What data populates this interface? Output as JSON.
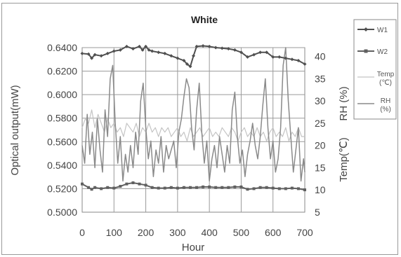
{
  "chart_data": {
    "type": "line",
    "title": "White",
    "xlabel": "Hour",
    "ylabel_left": "Optical output(mW)",
    "ylabel_right_rh": "RH (%)",
    "ylabel_right_temp": "Temp(℃)",
    "xlim": [
      0,
      700
    ],
    "ylim_left": [
      0.5,
      0.64
    ],
    "ylim_right": [
      5,
      42
    ],
    "grid": true,
    "legend_position": "right",
    "x_ticks": [
      "0",
      "100",
      "200",
      "300",
      "400",
      "500",
      "600",
      "700"
    ],
    "y_left_ticks": [
      "0.5000",
      "0.5200",
      "0.5400",
      "0.5600",
      "0.5800",
      "0.6000",
      "0.6200",
      "0.6400"
    ],
    "y_right_ticks": [
      "5",
      "10",
      "15",
      "20",
      "25",
      "30",
      "35",
      "40"
    ],
    "legend": [
      {
        "label": "W1",
        "color": "#555555",
        "marker": "diamond"
      },
      {
        "label": "W2",
        "color": "#555555",
        "marker": "square"
      },
      {
        "label": "Temp (℃)",
        "color": "#c4c4c4",
        "marker": "none"
      },
      {
        "label": "RH (%)",
        "color": "#8a8a8a",
        "marker": "none"
      }
    ],
    "series": [
      {
        "name": "W1",
        "axis": "left",
        "x": [
          0,
          20,
          30,
          40,
          60,
          80,
          100,
          120,
          140,
          160,
          180,
          190,
          200,
          210,
          220,
          240,
          260,
          280,
          300,
          320,
          330,
          340,
          350,
          360,
          380,
          400,
          420,
          440,
          460,
          480,
          500,
          520,
          540,
          560,
          580,
          600,
          620,
          640,
          660,
          680,
          700
        ],
        "y": [
          0.635,
          0.6345,
          0.631,
          0.634,
          0.633,
          0.635,
          0.637,
          0.638,
          0.641,
          0.639,
          0.641,
          0.638,
          0.641,
          0.638,
          0.637,
          0.636,
          0.635,
          0.633,
          0.631,
          0.629,
          0.626,
          0.624,
          0.633,
          0.641,
          0.6415,
          0.641,
          0.64,
          0.6395,
          0.639,
          0.638,
          0.636,
          0.632,
          0.634,
          0.636,
          0.636,
          0.632,
          0.632,
          0.631,
          0.63,
          0.629,
          0.626
        ]
      },
      {
        "name": "W2",
        "axis": "left",
        "x": [
          0,
          20,
          30,
          40,
          60,
          80,
          100,
          120,
          140,
          160,
          180,
          200,
          220,
          240,
          260,
          280,
          300,
          320,
          340,
          360,
          380,
          400,
          420,
          440,
          460,
          480,
          500,
          520,
          540,
          560,
          580,
          600,
          620,
          640,
          660,
          680,
          700
        ],
        "y": [
          0.524,
          0.521,
          0.5195,
          0.521,
          0.52,
          0.521,
          0.5205,
          0.522,
          0.524,
          0.525,
          0.524,
          0.523,
          0.521,
          0.5205,
          0.5205,
          0.521,
          0.5205,
          0.521,
          0.521,
          0.521,
          0.5215,
          0.5215,
          0.521,
          0.521,
          0.521,
          0.5215,
          0.5215,
          0.5195,
          0.52,
          0.521,
          0.521,
          0.5205,
          0.52,
          0.52,
          0.5205,
          0.52,
          0.519
        ]
      },
      {
        "name": "Temp (℃)",
        "axis": "right",
        "x": [
          0,
          10,
          20,
          30,
          40,
          50,
          60,
          70,
          80,
          90,
          100,
          110,
          120,
          130,
          140,
          150,
          160,
          170,
          180,
          190,
          200,
          210,
          220,
          230,
          240,
          250,
          260,
          270,
          280,
          290,
          300,
          310,
          320,
          330,
          340,
          350,
          360,
          370,
          380,
          390,
          400,
          410,
          420,
          430,
          440,
          450,
          460,
          470,
          480,
          490,
          500,
          510,
          520,
          530,
          540,
          550,
          560,
          570,
          580,
          590,
          600,
          610,
          620,
          630,
          640,
          650,
          660,
          670,
          680,
          690,
          700
        ],
        "y": [
          24,
          26,
          25,
          28,
          24,
          27,
          25,
          23,
          26,
          24,
          25,
          23,
          24,
          22,
          25,
          24,
          23,
          25,
          22,
          24,
          23,
          25,
          23,
          24,
          22,
          24,
          23,
          24,
          22,
          23,
          24,
          22,
          23,
          21,
          24,
          22,
          23,
          24,
          22,
          23,
          24,
          22,
          23,
          22,
          24,
          23,
          22,
          24,
          23,
          21,
          23,
          24,
          22,
          23,
          22,
          24,
          22,
          23,
          21,
          23,
          24,
          22,
          23,
          22,
          24,
          21,
          23,
          22,
          24,
          22,
          22
        ]
      },
      {
        "name": "RH (%)",
        "axis": "right",
        "x": [
          0,
          8,
          16,
          24,
          32,
          40,
          48,
          56,
          64,
          72,
          80,
          88,
          96,
          104,
          112,
          120,
          128,
          136,
          144,
          152,
          160,
          168,
          176,
          184,
          192,
          200,
          208,
          216,
          224,
          232,
          240,
          248,
          256,
          264,
          272,
          280,
          288,
          296,
          304,
          312,
          320,
          328,
          336,
          344,
          352,
          360,
          368,
          376,
          384,
          392,
          400,
          408,
          416,
          424,
          432,
          440,
          448,
          456,
          464,
          472,
          480,
          488,
          496,
          504,
          512,
          520,
          528,
          536,
          544,
          552,
          560,
          568,
          576,
          584,
          592,
          600,
          608,
          616,
          624,
          632,
          640,
          648,
          656,
          664,
          672,
          680,
          688,
          696,
          700
        ],
        "y": [
          20,
          16,
          27,
          18,
          23,
          15,
          26,
          19,
          14,
          28,
          22,
          35,
          38,
          25,
          16,
          22,
          12,
          18,
          14,
          20,
          15,
          23,
          18,
          30,
          34,
          24,
          17,
          21,
          13,
          19,
          16,
          22,
          14,
          20,
          17,
          19,
          21,
          15,
          23,
          26,
          31,
          35,
          33,
          24,
          19,
          28,
          34,
          23,
          16,
          21,
          12,
          17,
          20,
          15,
          22,
          18,
          14,
          20,
          16,
          28,
          32,
          22,
          16,
          19,
          13,
          18,
          21,
          25,
          20,
          17,
          22,
          29,
          35,
          24,
          17,
          21,
          14,
          17,
          24,
          38,
          42,
          30,
          22,
          14,
          19,
          24,
          12,
          17,
          14
        ]
      }
    ]
  }
}
